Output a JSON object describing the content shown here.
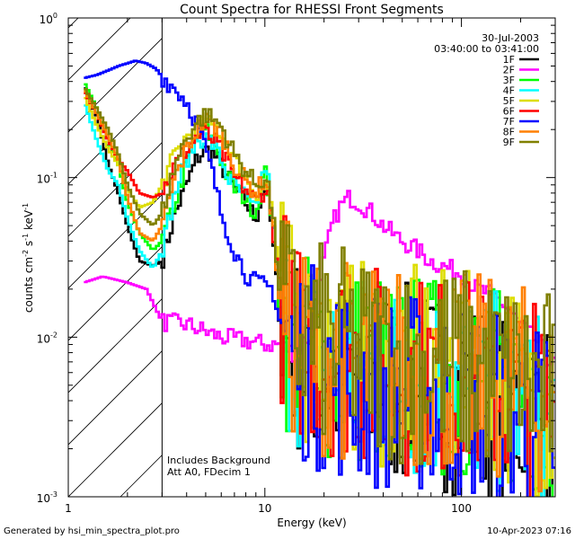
{
  "chart_data": {
    "type": "line",
    "title": "Count Spectra for RHESSI Front Segments",
    "xlabel": "Energy (keV)",
    "ylabel": "counts cm-2 s-1 keV-1",
    "ylabel_parts": {
      "base": "counts cm",
      "e1": "-2",
      "mid1": " s",
      "e2": "-1",
      "mid2": " keV",
      "e3": "-1"
    },
    "x_scale": "log",
    "y_scale": "log",
    "xlim": [
      1,
      300
    ],
    "ylim": [
      0.001,
      1.0
    ],
    "x_ticks": [
      {
        "value": 1,
        "label": "1"
      },
      {
        "value": 10,
        "label": "10"
      },
      {
        "value": 100,
        "label": "100"
      }
    ],
    "y_ticks": [
      {
        "value": 1.0,
        "base": "10",
        "exp": "0"
      },
      {
        "value": 0.1,
        "base": "10",
        "exp": "-1"
      },
      {
        "value": 0.01,
        "base": "10",
        "exp": "-2"
      },
      {
        "value": 0.001,
        "base": "10",
        "exp": "-3"
      }
    ],
    "attenuator_cutoff_keV": 3,
    "date": "30-Jul-2003",
    "time_range": "03:40:00 to 03:41:00",
    "annotations": [
      "Includes Background",
      "Att A0, FDecim 1"
    ],
    "legend_position": "top-right",
    "series": [
      {
        "name": "1F",
        "color": "#000000",
        "anchors": [
          [
            1.2,
            0.38
          ],
          [
            1.4,
            0.24
          ],
          [
            1.6,
            0.12
          ],
          [
            1.8,
            0.08
          ],
          [
            2,
            0.05
          ],
          [
            2.3,
            0.03
          ],
          [
            2.7,
            0.028
          ],
          [
            3,
            0.03
          ],
          [
            3.5,
            0.06
          ],
          [
            4,
            0.09
          ],
          [
            4.5,
            0.13
          ],
          [
            5,
            0.15
          ],
          [
            5.5,
            0.14
          ],
          [
            6,
            0.12
          ],
          [
            6.5,
            0.1
          ],
          [
            7,
            0.085
          ],
          [
            8,
            0.07
          ],
          [
            9,
            0.055
          ],
          [
            10,
            0.09
          ],
          [
            10.5,
            0.07
          ],
          [
            11,
            0.04
          ],
          [
            12,
            0.012
          ],
          [
            14,
            0.008
          ],
          [
            20,
            0.006
          ],
          [
            30,
            0.0055
          ],
          [
            50,
            0.005
          ],
          [
            100,
            0.0045
          ],
          [
            200,
            0.0035
          ],
          [
            300,
            0.0028
          ]
        ]
      },
      {
        "name": "2F",
        "color": "#ff00ff",
        "anchors": [
          [
            1.2,
            0.022
          ],
          [
            1.5,
            0.024
          ],
          [
            2,
            0.022
          ],
          [
            2.5,
            0.02
          ],
          [
            3,
            0.0125
          ],
          [
            4,
            0.012
          ],
          [
            6,
            0.01
          ],
          [
            8,
            0.0095
          ],
          [
            10,
            0.009
          ],
          [
            12,
            0.009
          ],
          [
            14,
            0.008
          ],
          [
            18,
            0.011
          ],
          [
            20,
            0.03
          ],
          [
            22,
            0.05
          ],
          [
            24,
            0.065
          ],
          [
            27,
            0.075
          ],
          [
            30,
            0.07
          ],
          [
            35,
            0.06
          ],
          [
            40,
            0.05
          ],
          [
            50,
            0.04
          ],
          [
            60,
            0.035
          ],
          [
            70,
            0.03
          ],
          [
            80,
            0.028
          ],
          [
            100,
            0.025
          ],
          [
            120,
            0.02
          ],
          [
            150,
            0.018
          ],
          [
            180,
            0.014
          ],
          [
            200,
            0.012
          ],
          [
            250,
            0.009
          ],
          [
            300,
            0.0065
          ]
        ]
      },
      {
        "name": "3F",
        "color": "#00ff00",
        "anchors": [
          [
            1.2,
            0.4
          ],
          [
            1.4,
            0.27
          ],
          [
            1.6,
            0.17
          ],
          [
            1.8,
            0.12
          ],
          [
            2,
            0.07
          ],
          [
            2.3,
            0.045
          ],
          [
            2.7,
            0.035
          ],
          [
            3,
            0.04
          ],
          [
            3.5,
            0.07
          ],
          [
            4,
            0.12
          ],
          [
            4.5,
            0.18
          ],
          [
            5,
            0.2
          ],
          [
            5.5,
            0.17
          ],
          [
            6,
            0.13
          ],
          [
            6.5,
            0.1
          ],
          [
            7,
            0.085
          ],
          [
            8,
            0.075
          ],
          [
            9,
            0.06
          ],
          [
            10,
            0.11
          ],
          [
            10.5,
            0.08
          ],
          [
            11,
            0.05
          ],
          [
            12,
            0.014
          ],
          [
            14,
            0.009
          ],
          [
            20,
            0.007
          ],
          [
            30,
            0.0065
          ],
          [
            50,
            0.006
          ],
          [
            100,
            0.0055
          ],
          [
            200,
            0.0045
          ],
          [
            300,
            0.0035
          ]
        ]
      },
      {
        "name": "4F",
        "color": "#00ffff",
        "anchors": [
          [
            1.2,
            0.3
          ],
          [
            1.4,
            0.17
          ],
          [
            1.6,
            0.11
          ],
          [
            1.8,
            0.09
          ],
          [
            2,
            0.055
          ],
          [
            2.3,
            0.035
          ],
          [
            2.7,
            0.027
          ],
          [
            3,
            0.035
          ],
          [
            3.5,
            0.08
          ],
          [
            4,
            0.13
          ],
          [
            4.5,
            0.17
          ],
          [
            5,
            0.18
          ],
          [
            5.5,
            0.16
          ],
          [
            6,
            0.13
          ],
          [
            6.5,
            0.1
          ],
          [
            7,
            0.09
          ],
          [
            8,
            0.075
          ],
          [
            9,
            0.06
          ],
          [
            10,
            0.12
          ],
          [
            10.5,
            0.09
          ],
          [
            11,
            0.05
          ],
          [
            12,
            0.015
          ],
          [
            14,
            0.009
          ],
          [
            20,
            0.007
          ],
          [
            30,
            0.006
          ],
          [
            50,
            0.0055
          ],
          [
            100,
            0.005
          ],
          [
            200,
            0.004
          ],
          [
            300,
            0.003
          ]
        ]
      },
      {
        "name": "5F",
        "color": "#dddd00",
        "anchors": [
          [
            1.2,
            0.33
          ],
          [
            1.4,
            0.21
          ],
          [
            1.6,
            0.15
          ],
          [
            1.8,
            0.12
          ],
          [
            2,
            0.085
          ],
          [
            2.3,
            0.065
          ],
          [
            2.7,
            0.07
          ],
          [
            3,
            0.09
          ],
          [
            3.5,
            0.14
          ],
          [
            4,
            0.18
          ],
          [
            4.5,
            0.2
          ],
          [
            5,
            0.22
          ],
          [
            5.5,
            0.21
          ],
          [
            6,
            0.19
          ],
          [
            6.5,
            0.16
          ],
          [
            7,
            0.13
          ],
          [
            8,
            0.1
          ],
          [
            9,
            0.08
          ],
          [
            10,
            0.09
          ],
          [
            10.5,
            0.08
          ],
          [
            11,
            0.06
          ],
          [
            12,
            0.02
          ],
          [
            14,
            0.01
          ],
          [
            20,
            0.008
          ],
          [
            30,
            0.007
          ],
          [
            50,
            0.0065
          ],
          [
            100,
            0.006
          ],
          [
            200,
            0.005
          ],
          [
            300,
            0.004
          ]
        ]
      },
      {
        "name": "6F",
        "color": "#ff0000",
        "anchors": [
          [
            1.2,
            0.35
          ],
          [
            1.4,
            0.25
          ],
          [
            1.6,
            0.17
          ],
          [
            1.8,
            0.13
          ],
          [
            2,
            0.11
          ],
          [
            2.3,
            0.08
          ],
          [
            2.7,
            0.075
          ],
          [
            3,
            0.08
          ],
          [
            3.5,
            0.12
          ],
          [
            4,
            0.15
          ],
          [
            4.5,
            0.18
          ],
          [
            5,
            0.19
          ],
          [
            5.5,
            0.17
          ],
          [
            6,
            0.15
          ],
          [
            6.5,
            0.12
          ],
          [
            7,
            0.1
          ],
          [
            8,
            0.085
          ],
          [
            9,
            0.07
          ],
          [
            10,
            0.085
          ],
          [
            10.5,
            0.075
          ],
          [
            11,
            0.05
          ],
          [
            12,
            0.018
          ],
          [
            14,
            0.01
          ],
          [
            20,
            0.008
          ],
          [
            30,
            0.007
          ],
          [
            50,
            0.006
          ],
          [
            100,
            0.0055
          ],
          [
            200,
            0.0045
          ],
          [
            300,
            0.0035
          ]
        ]
      },
      {
        "name": "7F",
        "color": "#0000ff",
        "anchors": [
          [
            1.2,
            0.42
          ],
          [
            1.4,
            0.44
          ],
          [
            1.6,
            0.47
          ],
          [
            1.8,
            0.5
          ],
          [
            2,
            0.52
          ],
          [
            2.2,
            0.54
          ],
          [
            2.5,
            0.52
          ],
          [
            2.8,
            0.48
          ],
          [
            3,
            0.43
          ],
          [
            3.5,
            0.36
          ],
          [
            4,
            0.3
          ],
          [
            4.5,
            0.22
          ],
          [
            5,
            0.15
          ],
          [
            5.5,
            0.1
          ],
          [
            6,
            0.06
          ],
          [
            7,
            0.035
          ],
          [
            8,
            0.025
          ],
          [
            9,
            0.022
          ],
          [
            10,
            0.021
          ],
          [
            11,
            0.02
          ],
          [
            12,
            0.012
          ],
          [
            14,
            0.008
          ],
          [
            20,
            0.006
          ],
          [
            30,
            0.005
          ],
          [
            50,
            0.0045
          ],
          [
            100,
            0.004
          ],
          [
            200,
            0.0033
          ],
          [
            300,
            0.0025
          ]
        ]
      },
      {
        "name": "8F",
        "color": "#ff8000",
        "anchors": [
          [
            1.2,
            0.36
          ],
          [
            1.4,
            0.25
          ],
          [
            1.6,
            0.18
          ],
          [
            1.8,
            0.13
          ],
          [
            2,
            0.075
          ],
          [
            2.3,
            0.045
          ],
          [
            2.7,
            0.04
          ],
          [
            3,
            0.05
          ],
          [
            3.5,
            0.1
          ],
          [
            4,
            0.15
          ],
          [
            4.5,
            0.2
          ],
          [
            5,
            0.23
          ],
          [
            5.5,
            0.21
          ],
          [
            6,
            0.19
          ],
          [
            6.5,
            0.15
          ],
          [
            7,
            0.12
          ],
          [
            8,
            0.095
          ],
          [
            9,
            0.08
          ],
          [
            10,
            0.1
          ],
          [
            10.5,
            0.08
          ],
          [
            11,
            0.05
          ],
          [
            12,
            0.016
          ],
          [
            14,
            0.01
          ],
          [
            20,
            0.008
          ],
          [
            30,
            0.007
          ],
          [
            50,
            0.0065
          ],
          [
            100,
            0.006
          ],
          [
            200,
            0.005
          ],
          [
            300,
            0.004
          ]
        ]
      },
      {
        "name": "9F",
        "color": "#808000",
        "anchors": [
          [
            1.2,
            0.37
          ],
          [
            1.4,
            0.27
          ],
          [
            1.6,
            0.2
          ],
          [
            1.8,
            0.14
          ],
          [
            2,
            0.09
          ],
          [
            2.3,
            0.06
          ],
          [
            2.7,
            0.05
          ],
          [
            3,
            0.06
          ],
          [
            3.5,
            0.12
          ],
          [
            4,
            0.18
          ],
          [
            4.5,
            0.22
          ],
          [
            5,
            0.25
          ],
          [
            5.5,
            0.23
          ],
          [
            6,
            0.21
          ],
          [
            6.5,
            0.17
          ],
          [
            7,
            0.14
          ],
          [
            8,
            0.11
          ],
          [
            9,
            0.09
          ],
          [
            10,
            0.1
          ],
          [
            10.5,
            0.085
          ],
          [
            11,
            0.055
          ],
          [
            12,
            0.018
          ],
          [
            14,
            0.011
          ],
          [
            20,
            0.009
          ],
          [
            30,
            0.008
          ],
          [
            50,
            0.007
          ],
          [
            100,
            0.0065
          ],
          [
            200,
            0.0055
          ],
          [
            300,
            0.0045
          ]
        ]
      }
    ]
  },
  "footer": {
    "left": "Generated by hsi_min_spectra_plot.pro",
    "right": "10-Apr-2023 07:16"
  }
}
